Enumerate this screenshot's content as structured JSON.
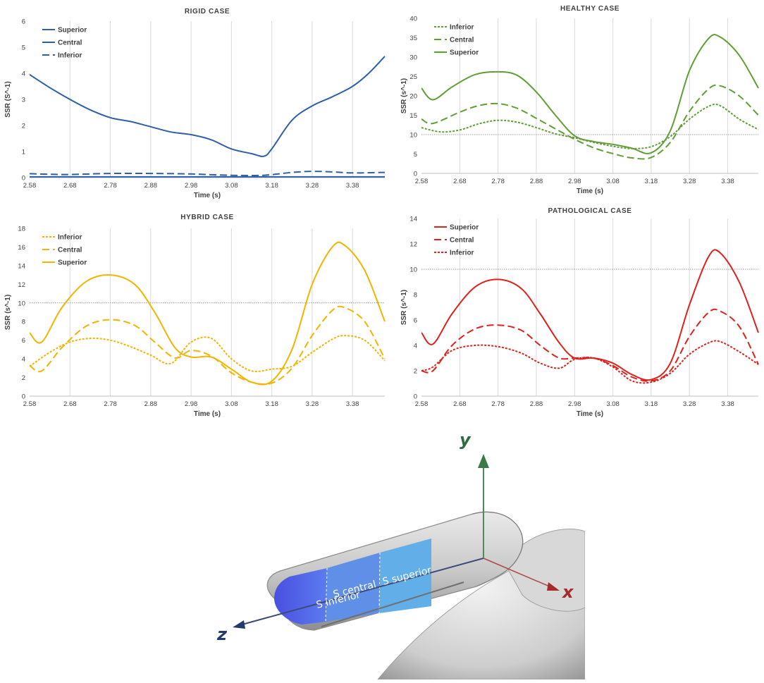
{
  "chart_data": [
    {
      "type": "line",
      "title": "RIGID CASE",
      "xlabel": "Time (s)",
      "ylabel": "SSR (S^-1)",
      "xlim": [
        2.58,
        3.46
      ],
      "ylim": [
        0,
        6
      ],
      "xticks": [
        "2.58",
        "2.68",
        "2.78",
        "2.88",
        "2.98",
        "3.08",
        "3.18",
        "3.28",
        "3.38"
      ],
      "yticks": [
        "0",
        "1",
        "2",
        "3",
        "4",
        "5",
        "6"
      ],
      "grid": "vertical",
      "threshold": null,
      "legend_position": "top-left",
      "color": "#2e5fa8",
      "series": [
        {
          "name": "Superior",
          "dash": "solid",
          "x": [
            2.58,
            2.63,
            2.68,
            2.73,
            2.78,
            2.83,
            2.88,
            2.93,
            2.98,
            3.03,
            3.08,
            3.13,
            3.16,
            3.18,
            3.23,
            3.28,
            3.33,
            3.38,
            3.42,
            3.46
          ],
          "y": [
            3.95,
            3.45,
            3.0,
            2.6,
            2.3,
            2.15,
            1.95,
            1.75,
            1.65,
            1.45,
            1.1,
            0.92,
            0.82,
            1.1,
            2.2,
            2.75,
            3.1,
            3.5,
            4.0,
            4.65
          ]
        },
        {
          "name": "Central",
          "dash": "solid",
          "x": [
            2.58,
            2.78,
            2.98,
            3.18,
            3.38,
            3.46
          ],
          "y": [
            0.03,
            0.03,
            0.03,
            0.03,
            0.03,
            0.03
          ]
        },
        {
          "name": "Inferior",
          "dash": "dash",
          "x": [
            2.58,
            2.63,
            2.68,
            2.78,
            2.88,
            2.98,
            3.08,
            3.16,
            3.23,
            3.28,
            3.33,
            3.38,
            3.46
          ],
          "y": [
            0.15,
            0.13,
            0.12,
            0.16,
            0.16,
            0.14,
            0.09,
            0.09,
            0.2,
            0.24,
            0.22,
            0.18,
            0.2
          ]
        }
      ]
    },
    {
      "type": "line",
      "title": "HEALTHY CASE",
      "xlabel": "Time (s)",
      "ylabel": "SSR (s^-1)",
      "xlim": [
        2.58,
        3.46
      ],
      "ylim": [
        0,
        40
      ],
      "xticks": [
        "2.58",
        "2.68",
        "2.78",
        "2.88",
        "2.98",
        "3.08",
        "3.18",
        "3.28",
        "3.38"
      ],
      "yticks": [
        "0",
        "5",
        "10",
        "15",
        "20",
        "25",
        "30",
        "35",
        "40"
      ],
      "grid": "vertical",
      "threshold": 10,
      "legend_position": "top-left",
      "color": "#5f9e35",
      "series": [
        {
          "name": "Inferior",
          "dash": "dot",
          "x": [
            2.58,
            2.63,
            2.68,
            2.73,
            2.78,
            2.83,
            2.88,
            2.93,
            2.98,
            3.03,
            3.08,
            3.13,
            3.18,
            3.23,
            3.28,
            3.33,
            3.36,
            3.41,
            3.46
          ],
          "y": [
            11.8,
            10.7,
            11.2,
            12.8,
            13.7,
            13.2,
            11.8,
            10.2,
            9.2,
            8.0,
            7.0,
            6.4,
            6.9,
            9.5,
            14.0,
            17.3,
            17.5,
            14.0,
            11.3
          ]
        },
        {
          "name": "Central",
          "dash": "dash",
          "x": [
            2.58,
            2.61,
            2.68,
            2.73,
            2.78,
            2.83,
            2.88,
            2.93,
            2.98,
            3.03,
            3.08,
            3.13,
            3.18,
            3.23,
            3.28,
            3.33,
            3.36,
            3.41,
            3.46
          ],
          "y": [
            14.0,
            12.9,
            15.8,
            17.5,
            18.0,
            16.8,
            14.2,
            11.5,
            8.8,
            6.6,
            5.1,
            4.0,
            4.1,
            8.0,
            16.0,
            21.8,
            22.6,
            20.0,
            15.0
          ]
        },
        {
          "name": "Superior",
          "dash": "solid",
          "x": [
            2.58,
            2.61,
            2.66,
            2.72,
            2.78,
            2.83,
            2.88,
            2.93,
            2.98,
            3.03,
            3.08,
            3.13,
            3.18,
            3.23,
            3.28,
            3.33,
            3.36,
            3.41,
            3.46
          ],
          "y": [
            22.0,
            19.0,
            22.3,
            25.5,
            26.2,
            25.3,
            21.0,
            15.0,
            9.7,
            8.2,
            7.5,
            6.5,
            5.3,
            11.0,
            26.5,
            34.8,
            35.2,
            30.5,
            22.0
          ]
        }
      ]
    },
    {
      "type": "line",
      "title": "HYBRID CASE",
      "xlabel": "Time (s)",
      "ylabel": "SSR (s^-1)",
      "xlim": [
        2.58,
        3.46
      ],
      "ylim": [
        0,
        18
      ],
      "xticks": [
        "2.58",
        "2.68",
        "2.78",
        "2.88",
        "2.98",
        "3.08",
        "3.18",
        "3.28",
        "3.38"
      ],
      "yticks": [
        "0",
        "2",
        "4",
        "6",
        "8",
        "10",
        "12",
        "14",
        "16",
        "18"
      ],
      "grid": "vertical",
      "threshold": 10,
      "legend_position": "top-left",
      "color": "#f3b400",
      "series": [
        {
          "name": "Inferior",
          "dash": "dot",
          "x": [
            2.58,
            2.63,
            2.68,
            2.73,
            2.78,
            2.83,
            2.88,
            2.93,
            2.98,
            3.03,
            3.08,
            3.13,
            3.18,
            3.23,
            3.28,
            3.33,
            3.36,
            3.41,
            3.46
          ],
          "y": [
            3.2,
            4.7,
            5.8,
            6.2,
            6.0,
            5.3,
            4.4,
            3.5,
            5.8,
            6.2,
            4.0,
            2.7,
            2.9,
            3.2,
            4.7,
            6.1,
            6.5,
            6.0,
            3.8
          ]
        },
        {
          "name": "Central",
          "dash": "dash",
          "x": [
            2.58,
            2.61,
            2.66,
            2.72,
            2.78,
            2.84,
            2.89,
            2.94,
            2.98,
            3.03,
            3.08,
            3.13,
            3.18,
            3.23,
            3.28,
            3.33,
            3.36,
            3.41,
            3.46
          ],
          "y": [
            3.3,
            2.7,
            5.2,
            7.5,
            8.2,
            7.6,
            5.8,
            4.1,
            4.9,
            4.3,
            2.5,
            1.5,
            1.4,
            3.0,
            6.5,
            9.2,
            9.5,
            8.0,
            4.0
          ]
        },
        {
          "name": "Superior",
          "dash": "solid",
          "x": [
            2.58,
            2.61,
            2.66,
            2.72,
            2.78,
            2.84,
            2.89,
            2.94,
            2.98,
            3.03,
            3.08,
            3.13,
            3.18,
            3.23,
            3.28,
            3.33,
            3.36,
            3.41,
            3.46
          ],
          "y": [
            6.8,
            5.8,
            9.5,
            12.3,
            13.0,
            12.0,
            9.0,
            5.2,
            4.2,
            4.2,
            2.9,
            1.5,
            1.6,
            5.0,
            12.0,
            16.0,
            16.2,
            13.5,
            8.0
          ]
        }
      ]
    },
    {
      "type": "line",
      "title": "PATHOLOGICAL CASE",
      "xlabel": "Time (s)",
      "ylabel": "SSR (s^-1)",
      "xlim": [
        2.58,
        3.46
      ],
      "ylim": [
        0,
        14
      ],
      "xticks": [
        "2.58",
        "2.68",
        "2.78",
        "2.88",
        "2.98",
        "3.08",
        "3.18",
        "3.28",
        "3.38"
      ],
      "yticks": [
        "0",
        "2",
        "4",
        "6",
        "8",
        "10",
        "12",
        "14"
      ],
      "grid": "vertical",
      "threshold": 10,
      "legend_position": "top-left",
      "color": "#e0201b",
      "series": [
        {
          "name": "Superior",
          "dash": "solid",
          "x": [
            2.58,
            2.61,
            2.66,
            2.72,
            2.78,
            2.84,
            2.89,
            2.94,
            2.98,
            3.03,
            3.08,
            3.13,
            3.18,
            3.23,
            3.28,
            3.33,
            3.36,
            3.41,
            3.46
          ],
          "y": [
            5.0,
            4.1,
            6.5,
            8.6,
            9.2,
            8.5,
            6.5,
            4.2,
            3.0,
            3.0,
            2.6,
            1.7,
            1.3,
            2.6,
            7.2,
            11.0,
            11.3,
            9.0,
            5.0
          ]
        },
        {
          "name": "Central",
          "dash": "dash",
          "x": [
            2.58,
            2.61,
            2.66,
            2.72,
            2.78,
            2.84,
            2.89,
            2.94,
            2.98,
            3.03,
            3.08,
            3.13,
            3.18,
            3.23,
            3.28,
            3.33,
            3.36,
            3.41,
            3.46
          ],
          "y": [
            2.0,
            2.0,
            4.0,
            5.3,
            5.6,
            5.2,
            4.0,
            3.0,
            3.0,
            3.0,
            2.4,
            1.5,
            1.2,
            2.0,
            4.7,
            6.6,
            6.7,
            5.5,
            2.5
          ]
        },
        {
          "name": "Inferior",
          "dash": "dot",
          "x": [
            2.58,
            2.61,
            2.66,
            2.72,
            2.78,
            2.84,
            2.89,
            2.94,
            2.98,
            3.03,
            3.08,
            3.13,
            3.18,
            3.23,
            3.28,
            3.33,
            3.36,
            3.41,
            3.46
          ],
          "y": [
            2.0,
            2.3,
            3.6,
            4.0,
            3.9,
            3.4,
            2.6,
            2.2,
            2.9,
            3.0,
            2.3,
            1.2,
            1.1,
            1.8,
            3.3,
            4.2,
            4.3,
            3.5,
            2.5
          ]
        }
      ]
    }
  ],
  "geometry": {
    "segments": [
      "S inferior",
      "S central",
      "S superior"
    ],
    "axes": {
      "x": "x",
      "y": "y",
      "z": "z"
    },
    "colors": {
      "x_axis": "#a52a2a",
      "y_axis": "#3a7a4a",
      "z_axis": "#243b6a",
      "surface": "#cfcfcf"
    }
  }
}
